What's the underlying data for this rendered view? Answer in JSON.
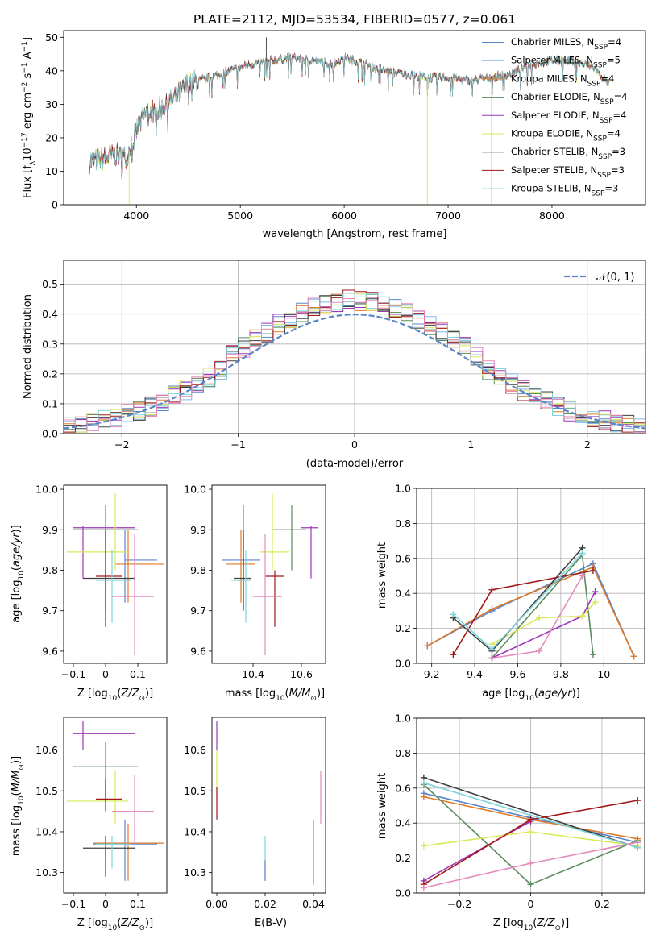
{
  "colors": {
    "chabrier_miles": "#5a86c9",
    "salpeter_miles": "#7fb8ea",
    "kroupa_miles": "#e07b2a",
    "chabrier_elodie": "#5b8a5b",
    "salpeter_elodie": "#9e35b8",
    "kroupa_elodie": "#d9e85a",
    "chabrier_stelib": "#3f3f3f",
    "salpeter_stelib": "#a01818",
    "kroupa_stelib": "#7dd4da",
    "extra_pink": "#e38cbd",
    "normal_curve": "#5a86c9"
  },
  "chart_data": [
    {
      "id": "spectrum",
      "type": "line",
      "title": "PLATE=2112, MJD=53534, FIBERID=0577, z=0.061",
      "xlabel": "wavelength [Angstrom, rest frame]",
      "ylabel": "Flux [f_λ10^-17 erg cm^-2 s^-1 A^-1]",
      "xlim": [
        3300,
        8900
      ],
      "ylim": [
        0,
        52
      ],
      "xticks": [
        4000,
        5000,
        6000,
        7000,
        8000
      ],
      "yticks": [
        0,
        10,
        20,
        30,
        40,
        50
      ],
      "legend_position": "top-right",
      "series": [
        {
          "name": "Chabrier MILES, N_SSP=4",
          "color": "chabrier_miles"
        },
        {
          "name": "Salpeter MILES, N_SSP=5",
          "color": "salpeter_miles"
        },
        {
          "name": "Kroupa MILES, N_SSP=4",
          "color": "kroupa_miles"
        },
        {
          "name": "Chabrier ELODIE, N_SSP=4",
          "color": "chabrier_elodie"
        },
        {
          "name": "Salpeter ELODIE, N_SSP=4",
          "color": "salpeter_elodie"
        },
        {
          "name": "Kroupa ELODIE, N_SSP=4",
          "color": "kroupa_elodie"
        },
        {
          "name": "Chabrier STELIB, N_SSP=3",
          "color": "chabrier_stelib"
        },
        {
          "name": "Salpeter STELIB, N_SSP=3",
          "color": "salpeter_stelib"
        },
        {
          "name": "Kroupa STELIB, N_SSP=3",
          "color": "kroupa_stelib"
        }
      ],
      "continuum": {
        "x": [
          3550,
          3700,
          3800,
          3900,
          4000,
          4100,
          4200,
          4300,
          4400,
          4500,
          4700,
          4900,
          5100,
          5300,
          5500,
          5700,
          5900,
          6000,
          6200,
          6400,
          6600,
          6800,
          7000,
          7200,
          7400,
          7600,
          7800,
          8000,
          8200,
          8400,
          8550
        ],
        "y": [
          13,
          14,
          15,
          14,
          22,
          28,
          28,
          30,
          33,
          36,
          38,
          40,
          42,
          43,
          44,
          43,
          42,
          44,
          42,
          40,
          39,
          38,
          38,
          37,
          38,
          39,
          42,
          43,
          43,
          41,
          36
        ]
      },
      "dips": [
        {
          "x": 3930,
          "y": 0
        },
        {
          "x": 5250,
          "y": 50
        },
        {
          "x": 6800,
          "y": 0
        },
        {
          "x": 7420,
          "y": 0
        }
      ]
    },
    {
      "id": "residuals",
      "type": "histogram",
      "xlabel": "(data-model)/error",
      "ylabel": "Normed distribution",
      "xlim": [
        -2.5,
        2.5
      ],
      "ylim": [
        0,
        0.58
      ],
      "xticks": [
        -2,
        -1,
        0,
        1,
        2
      ],
      "yticks": [
        0.0,
        0.1,
        0.2,
        0.3,
        0.4,
        0.5
      ],
      "grid": true,
      "legend_position": "top-right",
      "legend_label": "𝒩(0, 1)",
      "bin_width": 0.1,
      "bin_start": -2.5
    },
    {
      "id": "age_vs_Z",
      "type": "errorbar",
      "xlabel": "Z [log10(Z/Z⊙)]",
      "ylabel": "age [log10(age/yr)]",
      "xlim": [
        -0.13,
        0.19
      ],
      "ylim": [
        9.57,
        10.01
      ],
      "xticks": [
        -0.1,
        0.0,
        0.1
      ],
      "yticks": [
        9.6,
        9.7,
        9.8,
        9.9,
        10.0
      ],
      "points": [
        {
          "c": "chabrier_miles",
          "x": 0.06,
          "y": 9.825,
          "xe": [
            0.06,
            0.16
          ],
          "ye": [
            9.72,
            9.9
          ]
        },
        {
          "c": "kroupa_miles",
          "x": 0.07,
          "y": 9.815,
          "xe": [
            0.03,
            0.18
          ],
          "ye": [
            9.72,
            9.9
          ]
        },
        {
          "c": "chabrier_elodie",
          "x": 0.0,
          "y": 9.9,
          "xe": [
            -0.1,
            0.1
          ],
          "ye": [
            9.75,
            9.96
          ]
        },
        {
          "c": "salpeter_elodie",
          "x": -0.07,
          "y": 9.905,
          "xe": [
            -0.1,
            0.09
          ],
          "ye": [
            9.78,
            9.91
          ]
        },
        {
          "c": "kroupa_elodie",
          "x": 0.03,
          "y": 9.845,
          "xe": [
            -0.12,
            0.07
          ],
          "ye": [
            9.8,
            9.99
          ]
        },
        {
          "c": "chabrier_stelib",
          "x": 0.0,
          "y": 9.78,
          "xe": [
            -0.07,
            0.09
          ],
          "ye": [
            9.7,
            9.9
          ]
        },
        {
          "c": "salpeter_stelib",
          "x": 0.0,
          "y": 9.785,
          "xe": [
            -0.03,
            0.05
          ],
          "ye": [
            9.66,
            9.8
          ]
        },
        {
          "c": "kroupa_stelib",
          "x": 0.02,
          "y": 9.775,
          "xe": [
            -0.03,
            0.08
          ],
          "ye": [
            9.67,
            9.85
          ]
        },
        {
          "c": "extra_pink",
          "x": 0.09,
          "y": 9.735,
          "xe": [
            0.02,
            0.15
          ],
          "ye": [
            9.59,
            9.89
          ]
        }
      ]
    },
    {
      "id": "age_vs_mass",
      "type": "errorbar",
      "xlabel": "mass [log10(M/M⊙)]",
      "xlim": [
        10.23,
        10.7
      ],
      "ylim": [
        9.57,
        10.01
      ],
      "xticks": [
        10.4,
        10.6
      ],
      "yticks": [
        9.6,
        9.7,
        9.8,
        9.9,
        10.0
      ],
      "points": [
        {
          "c": "chabrier_miles",
          "x": 10.36,
          "y": 9.825,
          "xe": [
            10.27,
            10.43
          ],
          "ye": [
            9.72,
            9.96
          ]
        },
        {
          "c": "kroupa_miles",
          "x": 10.35,
          "y": 9.815,
          "xe": [
            10.29,
            10.41
          ],
          "ye": [
            9.72,
            9.9
          ]
        },
        {
          "c": "chabrier_elodie",
          "x": 10.56,
          "y": 9.9,
          "xe": [
            10.48,
            10.62
          ],
          "ye": [
            9.8,
            9.96
          ]
        },
        {
          "c": "salpeter_elodie",
          "x": 10.64,
          "y": 9.905,
          "xe": [
            10.6,
            10.67
          ],
          "ye": [
            9.78,
            9.91
          ]
        },
        {
          "c": "kroupa_elodie",
          "x": 10.48,
          "y": 9.845,
          "xe": [
            10.43,
            10.55
          ],
          "ye": [
            9.8,
            9.99
          ]
        },
        {
          "c": "chabrier_stelib",
          "x": 10.36,
          "y": 9.78,
          "xe": [
            10.32,
            10.39
          ],
          "ye": [
            9.7,
            9.9
          ]
        },
        {
          "c": "salpeter_stelib",
          "x": 10.49,
          "y": 9.785,
          "xe": [
            10.45,
            10.53
          ],
          "ye": [
            9.66,
            9.8
          ]
        },
        {
          "c": "kroupa_stelib",
          "x": 10.37,
          "y": 9.775,
          "xe": [
            10.31,
            10.39
          ],
          "ye": [
            9.67,
            9.85
          ]
        },
        {
          "c": "extra_pink",
          "x": 10.45,
          "y": 9.735,
          "xe": [
            10.4,
            10.52
          ],
          "ye": [
            9.59,
            9.89
          ]
        }
      ]
    },
    {
      "id": "mass_weight_vs_age",
      "type": "line",
      "xlabel": "age [log10(age/yr)]",
      "ylabel": "mass weight",
      "xlim": [
        9.13,
        10.19
      ],
      "ylim": [
        0,
        1
      ],
      "xticks": [
        9.2,
        9.4,
        9.6,
        9.8,
        10.0
      ],
      "yticks": [
        0.0,
        0.2,
        0.4,
        0.6,
        0.8,
        1.0
      ],
      "grid": true,
      "series": [
        {
          "c": "chabrier_miles",
          "x": [
            9.18,
            9.48,
            9.95,
            10.14
          ],
          "y": [
            0.1,
            0.3,
            0.57,
            0.04
          ]
        },
        {
          "c": "kroupa_miles",
          "x": [
            9.18,
            9.48,
            9.95,
            10.14
          ],
          "y": [
            0.1,
            0.31,
            0.55,
            0.04
          ]
        },
        {
          "c": "chabrier_elodie",
          "x": [
            9.48,
            9.9,
            9.95
          ],
          "y": [
            0.03,
            0.62,
            0.05
          ]
        },
        {
          "c": "salpeter_elodie",
          "x": [
            9.48,
            9.9,
            9.96
          ],
          "y": [
            0.03,
            0.27,
            0.41
          ]
        },
        {
          "c": "kroupa_elodie",
          "x": [
            9.48,
            9.7,
            9.9,
            9.96
          ],
          "y": [
            0.11,
            0.26,
            0.27,
            0.35
          ]
        },
        {
          "c": "chabrier_stelib",
          "x": [
            9.3,
            9.48,
            9.9
          ],
          "y": [
            0.26,
            0.07,
            0.66
          ]
        },
        {
          "c": "salpeter_stelib",
          "x": [
            9.3,
            9.48,
            9.95
          ],
          "y": [
            0.05,
            0.42,
            0.53
          ]
        },
        {
          "c": "kroupa_stelib",
          "x": [
            9.3,
            9.48,
            9.9
          ],
          "y": [
            0.28,
            0.08,
            0.63
          ]
        },
        {
          "c": "extra_pink",
          "x": [
            9.48,
            9.7,
            9.9
          ],
          "y": [
            0.03,
            0.07,
            0.5
          ]
        }
      ]
    },
    {
      "id": "mass_vs_Z",
      "type": "errorbar",
      "xlabel": "Z [log10(Z/Z⊙)]",
      "ylabel": "mass [log10(M/M⊙)]",
      "xlim": [
        -0.13,
        0.19
      ],
      "ylim": [
        10.25,
        10.68
      ],
      "xticks": [
        -0.1,
        0.0,
        0.1
      ],
      "yticks": [
        10.3,
        10.4,
        10.5,
        10.6
      ],
      "points": [
        {
          "c": "chabrier_miles",
          "x": 0.06,
          "y": 10.37,
          "xe": [
            -0.04,
            0.16
          ],
          "ye": [
            10.28,
            10.43
          ]
        },
        {
          "c": "kroupa_miles",
          "x": 0.07,
          "y": 10.372,
          "xe": [
            -0.04,
            0.18
          ],
          "ye": [
            10.28,
            10.42
          ]
        },
        {
          "c": "chabrier_elodie",
          "x": 0.0,
          "y": 10.56,
          "xe": [
            -0.1,
            0.1
          ],
          "ye": [
            10.48,
            10.62
          ]
        },
        {
          "c": "salpeter_elodie",
          "x": -0.07,
          "y": 10.64,
          "xe": [
            -0.1,
            0.09
          ],
          "ye": [
            10.6,
            10.67
          ]
        },
        {
          "c": "kroupa_elodie",
          "x": 0.03,
          "y": 10.475,
          "xe": [
            -0.12,
            0.07
          ],
          "ye": [
            10.42,
            10.55
          ]
        },
        {
          "c": "chabrier_stelib",
          "x": 0.0,
          "y": 10.36,
          "xe": [
            -0.07,
            0.09
          ],
          "ye": [
            10.29,
            10.39
          ]
        },
        {
          "c": "salpeter_stelib",
          "x": 0.0,
          "y": 10.48,
          "xe": [
            -0.03,
            0.05
          ],
          "ye": [
            10.45,
            10.53
          ]
        },
        {
          "c": "kroupa_stelib",
          "x": 0.02,
          "y": 10.37,
          "xe": [
            -0.03,
            0.08
          ],
          "ye": [
            10.31,
            10.39
          ]
        },
        {
          "c": "extra_pink",
          "x": 0.09,
          "y": 10.45,
          "xe": [
            0.02,
            0.15
          ],
          "ye": [
            10.37,
            10.54
          ]
        }
      ]
    },
    {
      "id": "mass_vs_ebv",
      "type": "errorbar",
      "xlabel": "E(B-V)",
      "xlim": [
        -0.002,
        0.045
      ],
      "ylim": [
        10.25,
        10.68
      ],
      "xticks": [
        0.0,
        0.02,
        0.04
      ],
      "yticks": [
        10.3,
        10.4,
        10.5,
        10.6
      ],
      "points": [
        {
          "c": "salpeter_elodie",
          "x": 0.0,
          "ye": [
            10.6,
            10.67
          ]
        },
        {
          "c": "kroupa_elodie",
          "x": 0.0,
          "ye": [
            10.48,
            10.6
          ]
        },
        {
          "c": "salpeter_stelib",
          "x": 0.0,
          "ye": [
            10.43,
            10.51
          ]
        },
        {
          "c": "kroupa_stelib",
          "x": 0.02,
          "ye": [
            10.28,
            10.39
          ]
        },
        {
          "c": "chabrier_miles",
          "x": 0.02,
          "ye": [
            10.28,
            10.33
          ]
        },
        {
          "c": "kroupa_miles",
          "x": 0.04,
          "ye": [
            10.27,
            10.43
          ]
        },
        {
          "c": "extra_pink",
          "x": 0.043,
          "ye": [
            10.42,
            10.55
          ]
        }
      ]
    },
    {
      "id": "mass_weight_vs_Z",
      "type": "line",
      "xlabel": "Z [log10(Z/Z⊙)]",
      "ylabel": "mass weight",
      "xlim": [
        -0.32,
        0.32
      ],
      "ylim": [
        0,
        1
      ],
      "xticks": [
        -0.2,
        0.0,
        0.2
      ],
      "yticks": [
        0.0,
        0.2,
        0.4,
        0.6,
        0.8,
        1.0
      ],
      "grid": true,
      "series": [
        {
          "c": "chabrier_miles",
          "x": [
            -0.3,
            0.0,
            0.3
          ],
          "y": [
            0.57,
            0.43,
            0.29
          ]
        },
        {
          "c": "kroupa_miles",
          "x": [
            -0.3,
            0.0,
            0.3
          ],
          "y": [
            0.55,
            0.42,
            0.31
          ]
        },
        {
          "c": "chabrier_elodie",
          "x": [
            -0.3,
            0.0,
            0.3
          ],
          "y": [
            0.62,
            0.05,
            0.3
          ]
        },
        {
          "c": "salpeter_elodie",
          "x": [
            -0.3,
            0.0
          ],
          "y": [
            0.07,
            0.41
          ]
        },
        {
          "c": "kroupa_elodie",
          "x": [
            -0.3,
            0.0,
            0.3
          ],
          "y": [
            0.27,
            0.35,
            0.27
          ]
        },
        {
          "c": "chabrier_stelib",
          "x": [
            -0.3,
            0.3
          ],
          "y": [
            0.66,
            0.26
          ]
        },
        {
          "c": "salpeter_stelib",
          "x": [
            -0.3,
            0.0,
            0.3
          ],
          "y": [
            0.05,
            0.42,
            0.53
          ]
        },
        {
          "c": "kroupa_stelib",
          "x": [
            -0.3,
            0.3
          ],
          "y": [
            0.63,
            0.26
          ]
        },
        {
          "c": "extra_pink",
          "x": [
            -0.3,
            0.0,
            0.3
          ],
          "y": [
            0.03,
            0.17,
            0.29
          ]
        }
      ]
    }
  ]
}
